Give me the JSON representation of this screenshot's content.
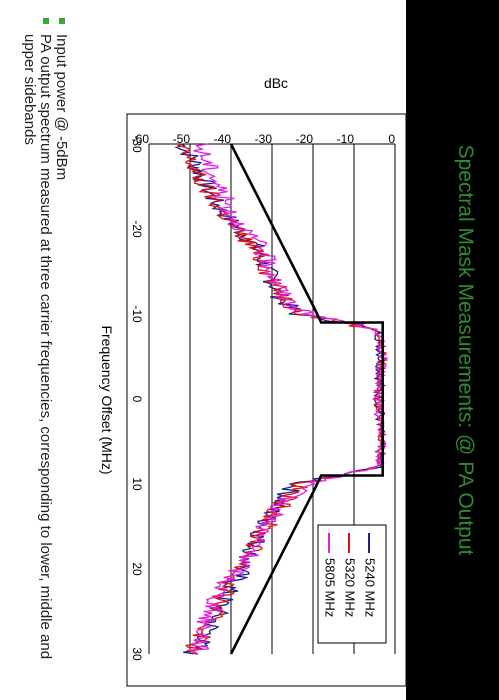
{
  "slide": {
    "title": "Spectral Mask Measurements: @ PA Output",
    "notes": [
      "Input power @ -5dBm",
      "PA output spectrum measured at three carrier frequencies, corresponding to lower, middle and upper sidebands"
    ],
    "accent_color": "#2f8a2f",
    "bullet_color": "#3aa63a"
  },
  "chart_data": {
    "type": "line",
    "title": "",
    "xlabel": "Frequency Offset (MHz)",
    "ylabel": "dBc",
    "xlim": [
      -30,
      30
    ],
    "ylim": [
      -60,
      0
    ],
    "x_ticks": [
      "-30",
      "-20",
      "-10",
      "0",
      "10",
      "20",
      "30"
    ],
    "y_ticks": [
      "0",
      "-10",
      "-20",
      "-30",
      "-40",
      "-50",
      "-60"
    ],
    "grid": "horizontal",
    "legend_position": "top-right",
    "mask": {
      "color": "#000000",
      "points": [
        [
          -30,
          -40
        ],
        [
          -11,
          -20
        ],
        [
          -9,
          -18
        ],
        [
          -9,
          -3
        ],
        [
          9,
          -3
        ],
        [
          9,
          -18
        ],
        [
          11,
          -20
        ],
        [
          30,
          -40
        ]
      ]
    },
    "series": [
      {
        "name": "5240 MHz",
        "color": "#1a1f8c",
        "points": [
          [
            -30,
            -52
          ],
          [
            -28,
            -49
          ],
          [
            -26,
            -47
          ],
          [
            -24,
            -45
          ],
          [
            -22,
            -42
          ],
          [
            -20,
            -38
          ],
          [
            -18,
            -34
          ],
          [
            -16,
            -32
          ],
          [
            -14,
            -30
          ],
          [
            -12,
            -28
          ],
          [
            -10,
            -24
          ],
          [
            -9,
            -12
          ],
          [
            -8,
            -4
          ],
          [
            -5,
            -3.5
          ],
          [
            0,
            -4
          ],
          [
            5,
            -3.5
          ],
          [
            8,
            -4
          ],
          [
            9,
            -14
          ],
          [
            10,
            -24
          ],
          [
            12,
            -28
          ],
          [
            14,
            -31
          ],
          [
            16,
            -33
          ],
          [
            18,
            -35
          ],
          [
            20,
            -37
          ],
          [
            22,
            -40
          ],
          [
            24,
            -42
          ],
          [
            26,
            -44
          ],
          [
            28,
            -46
          ],
          [
            30,
            -50
          ]
        ]
      },
      {
        "name": "5320 MHz",
        "color": "#e01010",
        "points": [
          [
            -30,
            -53
          ],
          [
            -28,
            -50
          ],
          [
            -26,
            -48
          ],
          [
            -24,
            -45
          ],
          [
            -22,
            -42
          ],
          [
            -20,
            -39
          ],
          [
            -18,
            -35
          ],
          [
            -16,
            -32
          ],
          [
            -14,
            -30
          ],
          [
            -12,
            -27
          ],
          [
            -10,
            -23
          ],
          [
            -9,
            -12
          ],
          [
            -8,
            -4
          ],
          [
            -5,
            -3
          ],
          [
            0,
            -4
          ],
          [
            5,
            -3
          ],
          [
            8,
            -4
          ],
          [
            9,
            -13
          ],
          [
            10,
            -23
          ],
          [
            12,
            -27
          ],
          [
            14,
            -30
          ],
          [
            16,
            -33
          ],
          [
            18,
            -35
          ],
          [
            20,
            -38
          ],
          [
            22,
            -41
          ],
          [
            24,
            -43
          ],
          [
            26,
            -45
          ],
          [
            28,
            -47
          ],
          [
            30,
            -50
          ]
        ]
      },
      {
        "name": "5805 MHz",
        "color": "#e020e0",
        "points": [
          [
            -30,
            -48
          ],
          [
            -28,
            -46
          ],
          [
            -26,
            -44
          ],
          [
            -24,
            -42
          ],
          [
            -22,
            -40
          ],
          [
            -20,
            -37
          ],
          [
            -18,
            -33
          ],
          [
            -16,
            -31
          ],
          [
            -14,
            -29
          ],
          [
            -12,
            -27
          ],
          [
            -10,
            -22
          ],
          [
            -9,
            -11
          ],
          [
            -8,
            -4
          ],
          [
            -5,
            -3
          ],
          [
            0,
            -4.5
          ],
          [
            5,
            -3
          ],
          [
            8,
            -4
          ],
          [
            9,
            -12
          ],
          [
            10,
            -22
          ],
          [
            12,
            -27
          ],
          [
            14,
            -30
          ],
          [
            16,
            -33
          ],
          [
            18,
            -35
          ],
          [
            20,
            -38
          ],
          [
            22,
            -42
          ],
          [
            24,
            -44
          ],
          [
            26,
            -46
          ],
          [
            28,
            -47
          ],
          [
            30,
            -48
          ]
        ]
      }
    ]
  }
}
